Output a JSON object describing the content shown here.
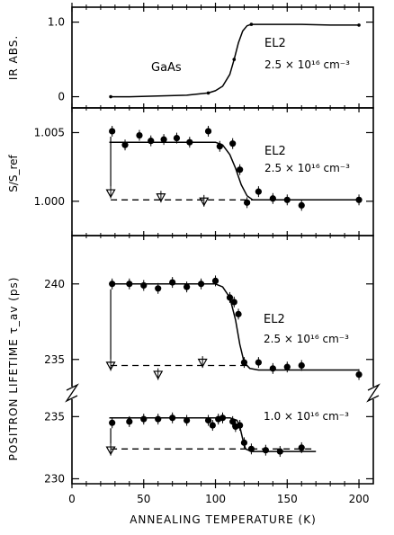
{
  "chart_data": [
    {
      "type": "line",
      "panel": "ir-absorption",
      "ylabel": "IR ABS.",
      "sample": "GaAs",
      "annotation": [
        "EL2",
        "2.5 × 10¹⁶ cm⁻³"
      ],
      "ylim": [
        -0.15,
        1.2
      ],
      "yticks": [
        {
          "v": 1.0,
          "label": "1.0"
        },
        {
          "v": 0.0,
          "label": "0"
        }
      ],
      "series": [
        {
          "style": "solid-line-small-dots",
          "x": [
            27,
            40,
            60,
            80,
            95,
            100,
            105,
            110,
            113,
            116,
            119,
            122,
            125,
            140,
            160,
            180,
            200
          ],
          "y": [
            0,
            0,
            0.01,
            0.02,
            0.05,
            0.08,
            0.14,
            0.3,
            0.5,
            0.72,
            0.88,
            0.95,
            0.97,
            0.97,
            0.97,
            0.96,
            0.96
          ]
        }
      ]
    },
    {
      "type": "scatter",
      "panel": "s-parameter",
      "ylabel": "S/S_ref",
      "annotation": [
        "EL2",
        "2.5 × 10¹⁶ cm⁻³"
      ],
      "ylim": [
        0.9975,
        1.0068
      ],
      "yticks": [
        {
          "v": 1.005,
          "label": "1.005"
        },
        {
          "v": 1.0,
          "label": "1.000"
        }
      ],
      "series": [
        {
          "style": "filled-circles",
          "x": [
            28,
            37,
            47,
            55,
            64,
            73,
            82,
            95,
            103,
            112,
            117,
            122,
            130,
            140,
            150,
            160,
            200
          ],
          "y": [
            1.0051,
            1.0041,
            1.0048,
            1.0044,
            1.0045,
            1.0046,
            1.0043,
            1.0051,
            1.004,
            1.0042,
            1.0023,
            0.9999,
            1.0007,
            1.0002,
            1.0001,
            0.9997,
            1.0001
          ]
        },
        {
          "style": "open-triangles",
          "x": [
            27,
            62,
            92
          ],
          "y": [
            1.0006,
            1.0003,
            1.0
          ]
        },
        {
          "style": "solid-fit",
          "x": [
            26,
            40,
            60,
            80,
            100,
            105,
            110,
            114,
            118,
            122,
            126,
            130,
            140,
            160,
            200
          ],
          "y": [
            1.0043,
            1.0043,
            1.0043,
            1.0043,
            1.0043,
            1.0041,
            1.0034,
            1.0024,
            1.0012,
            1.0004,
            1.0001,
            1.0001,
            1.0001,
            1.0001,
            1.0001
          ]
        },
        {
          "style": "dashed-fit",
          "x": [
            27,
            200
          ],
          "y": [
            1.0001,
            1.0001
          ]
        }
      ]
    },
    {
      "type": "scatter",
      "panel": "positron-lifetime",
      "ylabel": "POSITRON LIFETIME τ_av (ps)",
      "segments": [
        {
          "annotation": [
            "EL2",
            "2.5 × 10¹⁶ cm⁻³"
          ],
          "ylim": [
            233.2,
            243.2
          ],
          "yticks": [
            {
              "v": 240,
              "label": "240"
            },
            {
              "v": 235,
              "label": "235"
            }
          ],
          "series": [
            {
              "style": "filled-circles",
              "x": [
                28,
                40,
                50,
                60,
                70,
                80,
                90,
                100,
                110,
                113,
                116,
                120,
                130,
                140,
                150,
                160,
                200
              ],
              "y": [
                240.0,
                240.0,
                239.9,
                239.7,
                240.1,
                239.8,
                240.0,
                240.2,
                239.1,
                238.8,
                238.0,
                234.8,
                234.8,
                234.4,
                234.5,
                234.6,
                234.0
              ]
            },
            {
              "style": "open-triangles",
              "x": [
                27,
                60,
                91
              ],
              "y": [
                234.6,
                234.0,
                234.8
              ]
            },
            {
              "style": "solid-fit",
              "x": [
                26,
                60,
                100,
                105,
                110,
                114,
                117,
                120,
                124,
                130,
                140,
                200
              ],
              "y": [
                240.0,
                240.0,
                240.0,
                239.8,
                239.1,
                237.6,
                236.0,
                234.8,
                234.4,
                234.3,
                234.3,
                234.3
              ]
            },
            {
              "style": "dashed-fit",
              "x": [
                27,
                122
              ],
              "y": [
                234.6,
                234.6
              ]
            }
          ]
        },
        {
          "annotation": [
            "1.0 × 10¹⁶ cm⁻³"
          ],
          "ylim": [
            229.6,
            236.4
          ],
          "yticks": [
            {
              "v": 235,
              "label": "235"
            },
            {
              "v": 230,
              "label": "230"
            }
          ],
          "series": [
            {
              "style": "filled-circles",
              "x": [
                28,
                40,
                50,
                60,
                70,
                80,
                95,
                98,
                102,
                105,
                112,
                114,
                117,
                120,
                125,
                135,
                145,
                160
              ],
              "y": [
                234.5,
                234.6,
                234.8,
                234.8,
                234.9,
                234.7,
                234.7,
                234.3,
                234.8,
                234.9,
                234.6,
                234.2,
                234.3,
                232.9,
                232.4,
                232.3,
                232.2,
                232.5
              ]
            },
            {
              "style": "open-triangles",
              "x": [
                27
              ],
              "y": [
                232.3
              ]
            },
            {
              "style": "solid-fit",
              "x": [
                26,
                60,
                100,
                110,
                115,
                117,
                119,
                121,
                125,
                140,
                170
              ],
              "y": [
                234.9,
                234.9,
                234.9,
                234.9,
                234.7,
                234.2,
                233.2,
                232.4,
                232.2,
                232.2,
                232.2
              ]
            },
            {
              "style": "dashed-fit",
              "x": [
                27,
                168
              ],
              "y": [
                232.4,
                232.4
              ]
            }
          ]
        }
      ]
    }
  ],
  "xaxis": {
    "label": "ANNEALING TEMPERATURE (K)",
    "range": [
      0,
      210
    ],
    "ticks": [
      0,
      50,
      100,
      150,
      200
    ],
    "tick_labels": [
      "0",
      "50",
      "100",
      "150",
      "200"
    ]
  },
  "colors": {
    "ink": "#000000",
    "paper": "#ffffff"
  }
}
